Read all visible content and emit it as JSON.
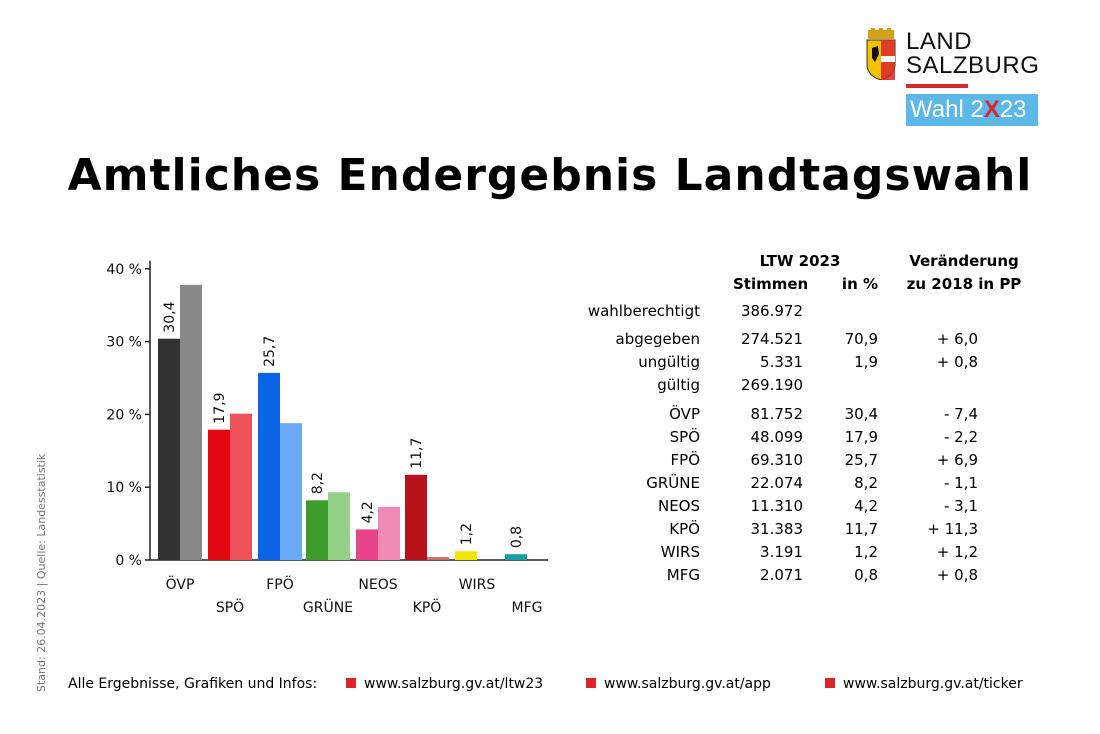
{
  "logo": {
    "line1": "LAND",
    "line2": "SALZBURG",
    "wahl_pre": "Wahl 2",
    "wahl_x": "X",
    "wahl_post": "23"
  },
  "title": "Amtliches Endergebnis Landtagswahl",
  "side_note": "Stand: 26.04.2023 | Quelle: Landesstatistik",
  "chart_data": {
    "type": "bar",
    "categories": [
      "ÖVP",
      "SPÖ",
      "FPÖ",
      "GRÜNE",
      "NEOS",
      "KPÖ",
      "WIRS",
      "MFG"
    ],
    "series": [
      {
        "values": [
          30.4,
          17.9,
          25.7,
          8.2,
          4.2,
          11.7,
          1.2,
          0.8
        ]
      },
      {
        "values": [
          37.8,
          20.1,
          18.8,
          9.3,
          7.3,
          0.4,
          null,
          null
        ]
      }
    ],
    "data_labels": [
      "30,4",
      "17,9",
      "25,7",
      "8,2",
      "4,2",
      "11,7",
      "1,2",
      "0,8"
    ],
    "colors_2023": [
      "#333333",
      "#e30613",
      "#0a64e6",
      "#3d9b2b",
      "#e8448a",
      "#b5121b",
      "#f2e500",
      "#1a9ea0"
    ],
    "colors_2018": [
      "#888888",
      "#ee5258",
      "#6aaaf7",
      "#93cf84",
      "#f28ab8",
      "#d66a6a",
      null,
      null
    ],
    "y_ticks": [
      "0 %",
      "10 %",
      "20 %",
      "30 %",
      "40 %"
    ],
    "ylim": [
      0,
      40
    ]
  },
  "table": {
    "head_ltw": "LTW 2023",
    "head_stimmen": "Stimmen",
    "head_pct": "in %",
    "head_change1": "Veränderung",
    "head_change2": "zu 2018 in PP",
    "rows": [
      {
        "label": "wahlberechtigt",
        "votes": "386.972",
        "pct": "",
        "change": ""
      },
      {
        "label": "abgegeben",
        "votes": "274.521",
        "pct": "70,9",
        "change": "+ 6,0"
      },
      {
        "label": "ungültig",
        "votes": "5.331",
        "pct": "1,9",
        "change": "+ 0,8"
      },
      {
        "label": "gültig",
        "votes": "269.190",
        "pct": "",
        "change": ""
      },
      {
        "label": "ÖVP",
        "votes": "81.752",
        "pct": "30,4",
        "change": "- 7,4"
      },
      {
        "label": "SPÖ",
        "votes": "48.099",
        "pct": "17,9",
        "change": "- 2,2"
      },
      {
        "label": "FPÖ",
        "votes": "69.310",
        "pct": "25,7",
        "change": "+ 6,9"
      },
      {
        "label": "GRÜNE",
        "votes": "22.074",
        "pct": "8,2",
        "change": "- 1,1"
      },
      {
        "label": "NEOS",
        "votes": "11.310",
        "pct": "4,2",
        "change": "- 3,1"
      },
      {
        "label": "KPÖ",
        "votes": "31.383",
        "pct": "11,7",
        "change": "+ 11,3"
      },
      {
        "label": "WIRS",
        "votes": "3.191",
        "pct": "1,2",
        "change": "+ 1,2"
      },
      {
        "label": "MFG",
        "votes": "2.071",
        "pct": "0,8",
        "change": "+ 0,8"
      }
    ]
  },
  "footer": {
    "intro": "Alle Ergebnisse, Grafiken und Infos:",
    "links": [
      "www.salzburg.gv.at/ltw23",
      "www.salzburg.gv.at/app",
      "www.salzburg.gv.at/ticker"
    ]
  },
  "colors": {
    "accent_red": "#d9262b",
    "wahl_blue": "#5cb8e6"
  }
}
